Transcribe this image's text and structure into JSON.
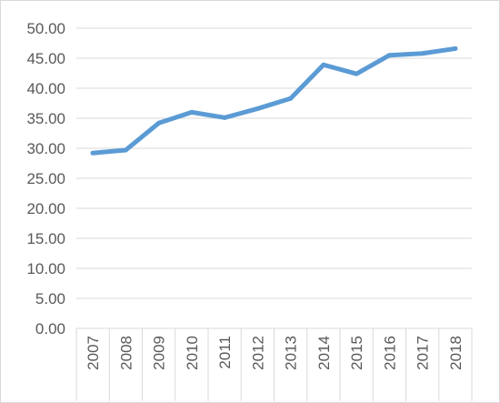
{
  "chart_data": {
    "type": "line",
    "title": "",
    "xlabel": "",
    "ylabel": "",
    "categories": [
      "2007",
      "2008",
      "2009",
      "2010",
      "2011",
      "2012",
      "2013",
      "2014",
      "2015",
      "2016",
      "2017",
      "2018"
    ],
    "series": [
      {
        "values": [
          29.2,
          29.7,
          34.2,
          36.0,
          35.1,
          36.6,
          38.3,
          43.9,
          42.4,
          45.5,
          45.8,
          46.6
        ]
      }
    ],
    "ylim": [
      0,
      50
    ],
    "yticks": [
      "0.00",
      "5.00",
      "10.00",
      "15.00",
      "20.00",
      "25.00",
      "30.00",
      "35.00",
      "40.00",
      "45.00",
      "50.00"
    ],
    "grid": true,
    "legend": "none",
    "line_color": "#5b9bd5",
    "grid_color": "#d9d9d9",
    "text_color": "#595959"
  }
}
